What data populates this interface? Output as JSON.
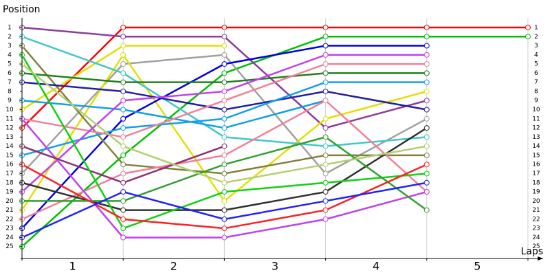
{
  "chart_data": {
    "type": "line",
    "y_label": "Position",
    "x_label": "Laps",
    "x": [
      0,
      1,
      2,
      3,
      4,
      5
    ],
    "xlim": [
      0,
      5.15
    ],
    "xticks": [
      {
        "value": 0.5,
        "label": "1"
      },
      {
        "value": 1.5,
        "label": "2"
      },
      {
        "value": 2.5,
        "label": "3"
      },
      {
        "value": 3.5,
        "label": "4"
      },
      {
        "value": 4.5,
        "label": "5"
      }
    ],
    "ylim": [
      26.3,
      0
    ],
    "yticks": [
      1,
      2,
      3,
      4,
      5,
      6,
      7,
      8,
      9,
      10,
      11,
      12,
      13,
      14,
      15,
      16,
      17,
      18,
      19,
      20,
      21,
      22,
      23,
      24,
      25
    ],
    "grid": true,
    "series": [
      {
        "color": "#ff0000",
        "values": [
          12,
          1,
          1,
          1,
          1,
          1
        ]
      },
      {
        "color": "#00c000",
        "values": [
          25,
          15,
          6,
          2,
          2,
          2
        ]
      },
      {
        "color": "#8e3a9e",
        "values": [
          1,
          2,
          2,
          12,
          9,
          null
        ]
      },
      {
        "color": "#a0a0a0",
        "values": [
          17,
          5,
          4,
          17,
          11,
          null
        ]
      },
      {
        "color": "#e0e000",
        "values": [
          10,
          3,
          3,
          null,
          null,
          null
        ]
      },
      {
        "color": "#e0e000",
        "values": [
          21,
          4,
          20,
          11,
          8,
          null
        ]
      },
      {
        "color": "#0000e0",
        "values": [
          23,
          11,
          5,
          3,
          3,
          null
        ]
      },
      {
        "color": "#808040",
        "values": [
          3,
          16,
          17,
          15,
          15,
          null
        ]
      },
      {
        "color": "#40c8c8",
        "values": [
          2,
          6,
          13,
          14,
          13,
          null
        ]
      },
      {
        "color": "#208020",
        "values": [
          6,
          7,
          7,
          6,
          6,
          null
        ]
      },
      {
        "color": "#2020a0",
        "values": [
          7,
          8,
          10,
          8,
          10,
          null
        ]
      },
      {
        "color": "#10a0e8",
        "values": [
          9,
          10,
          12,
          9,
          null,
          null
        ]
      },
      {
        "color": "#10a0e8",
        "values": [
          15,
          12,
          11,
          7,
          7,
          null
        ]
      },
      {
        "color": "#f08098",
        "values": [
          11,
          13,
          9,
          5,
          5,
          null
        ]
      },
      {
        "color": "#f08098",
        "values": [
          22,
          17,
          15,
          9,
          19,
          null
        ]
      },
      {
        "color": "#c040f0",
        "values": [
          11,
          24,
          24,
          22,
          19,
          null
        ]
      },
      {
        "color": "#c040f0",
        "values": [
          19,
          9,
          8,
          4,
          4,
          null
        ]
      },
      {
        "color": "#303030",
        "values": [
          18,
          21,
          21,
          19,
          12,
          null
        ]
      },
      {
        "color": "#903070",
        "values": [
          14,
          18,
          14,
          null,
          null,
          null
        ]
      },
      {
        "color": "#10d010",
        "values": [
          4,
          23,
          19,
          18,
          17,
          null
        ]
      },
      {
        "color": "#30a030",
        "values": [
          20,
          20,
          16,
          13,
          21,
          null
        ]
      },
      {
        "color": "#b0d070",
        "values": [
          5,
          14,
          18,
          16,
          14,
          null
        ]
      },
      {
        "color": "#ff2020",
        "values": [
          16,
          22,
          23,
          21,
          16,
          null
        ]
      },
      {
        "color": "#2020ff",
        "values": [
          24,
          19,
          22,
          20,
          18,
          null
        ]
      }
    ]
  }
}
